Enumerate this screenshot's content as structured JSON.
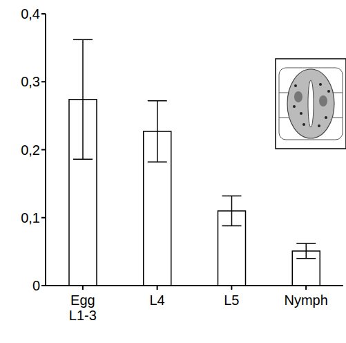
{
  "chart_data": {
    "type": "bar",
    "categories": [
      "Egg L1-3",
      "L4",
      "L5",
      "Nymph"
    ],
    "values": [
      0.274,
      0.227,
      0.11,
      0.051
    ],
    "errors": [
      0.088,
      0.045,
      0.022,
      0.011
    ],
    "color": "#ffffff",
    "ylim": [
      0,
      0.4
    ],
    "yticks": [
      0,
      {
        "value": 0.1,
        "label": "0,1"
      },
      {
        "value": 0.2,
        "label": "0,2"
      },
      {
        "value": 0.3,
        "label": "0,3"
      },
      {
        "value": 0.4,
        "label": "0,4"
      }
    ],
    "grid": false
  }
}
